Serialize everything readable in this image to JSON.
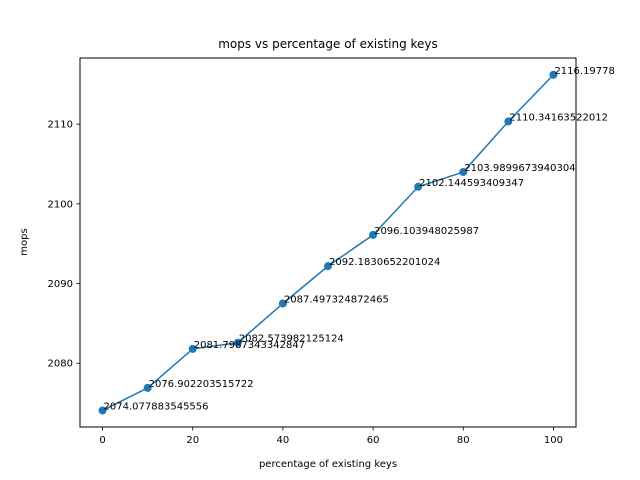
{
  "chart_data": {
    "type": "line",
    "title": "mops vs percentage of existing keys",
    "xlabel": "percentage of existing keys",
    "ylabel": "mops",
    "x": [
      0,
      10,
      20,
      30,
      40,
      50,
      60,
      70,
      80,
      90,
      100
    ],
    "series": [
      {
        "values": [
          2074.077883545556,
          2076.902203515722,
          2081.7987343342847,
          2082.573982125124,
          2087.497324872465,
          2092.1830652201024,
          2096.103948025987,
          2102.144593409347,
          2103.9899673940304,
          2110.34163522012,
          2116.19778
        ],
        "color": "#1f77b4",
        "marker": "circle"
      }
    ],
    "data_labels": [
      "2074.077883545556",
      "2076.902203515722",
      "2081.7987343342847",
      "2082.573982125124",
      "2087.497324872465",
      "2092.1830652201024",
      "2096.103948025987",
      "2102.144593409347",
      "2103.9899673940304",
      "2110.34163522012",
      "2116.19778"
    ],
    "xticks": [
      "0",
      "20",
      "40",
      "60",
      "80",
      "100"
    ],
    "yticks": [
      "2080",
      "2090",
      "2100",
      "2110"
    ],
    "xlim": [
      -5,
      105
    ],
    "ylim": [
      2072.0,
      2118.3
    ],
    "grid": false,
    "legend": false
  }
}
